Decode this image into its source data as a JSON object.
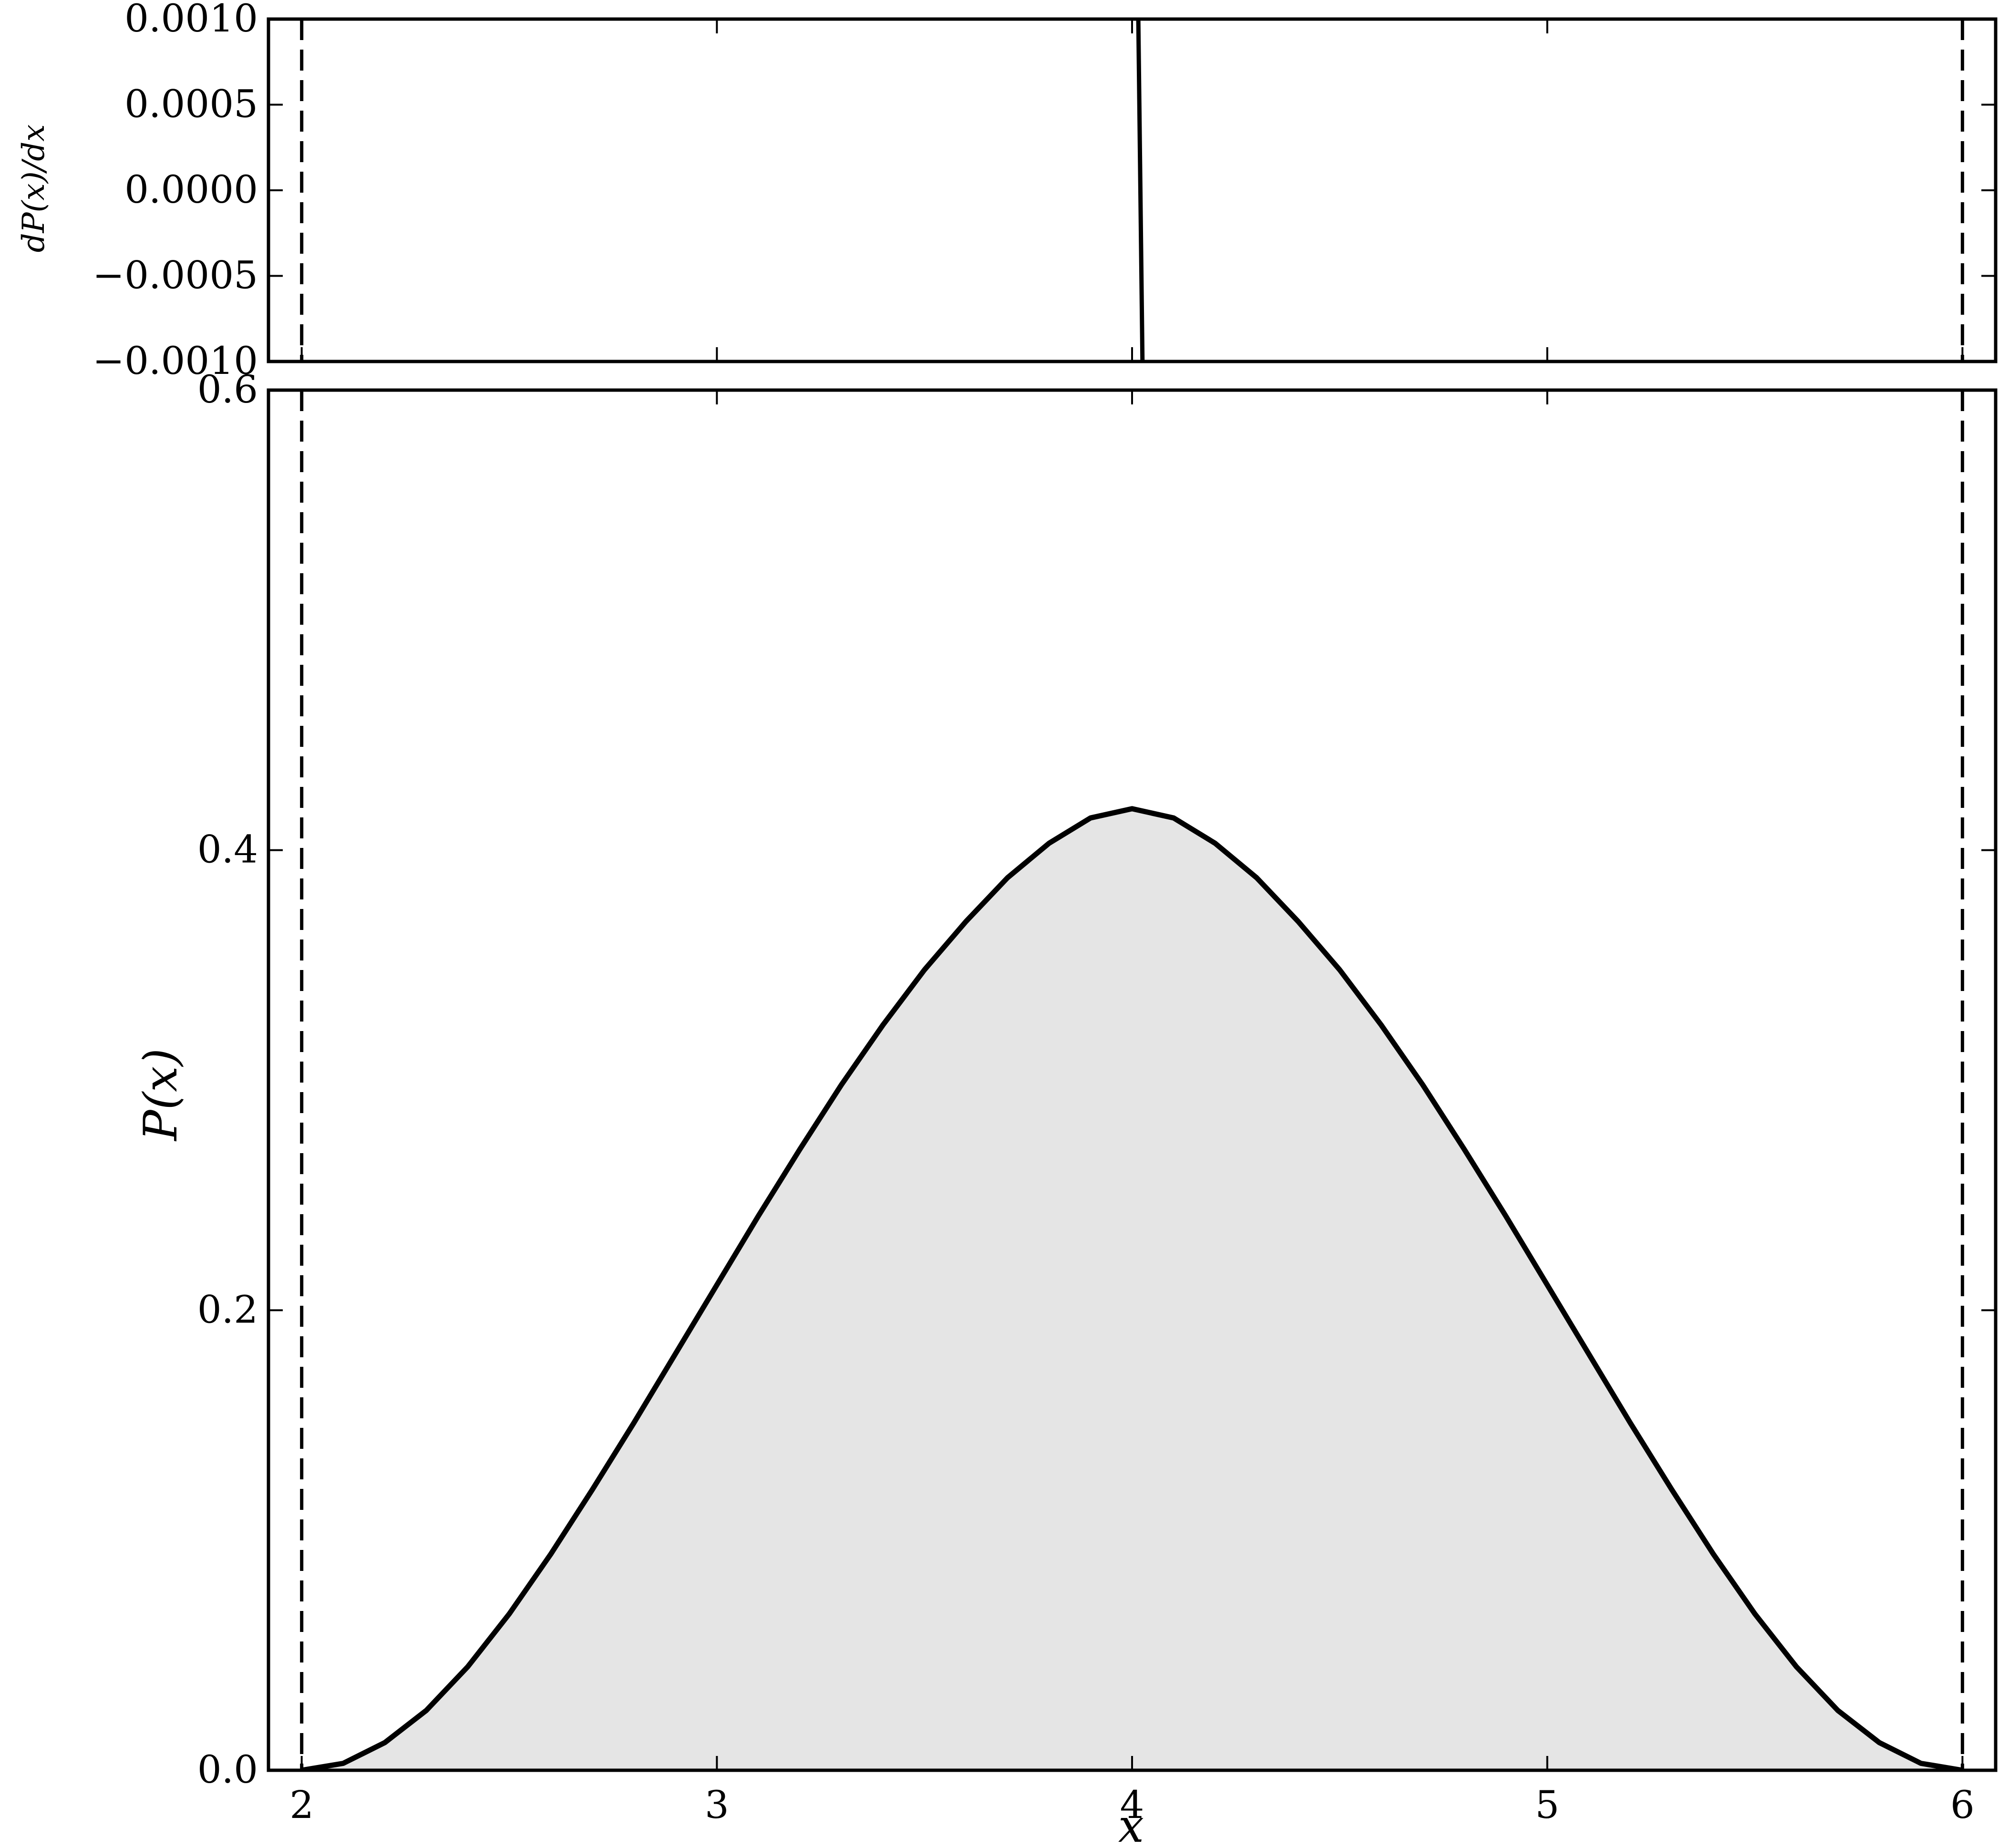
{
  "chart_data": [
    {
      "panel": "top",
      "type": "line",
      "xlabel": "",
      "ylabel": "dP(x)/dx",
      "xlim": [
        1.92,
        6.08
      ],
      "ylim": [
        -0.001,
        0.001
      ],
      "x_ticks": [
        2,
        3,
        4,
        5,
        6
      ],
      "y_ticks": [
        -0.001,
        -0.0005,
        0.0,
        0.0005,
        0.001
      ],
      "y_tick_labels": [
        "−0.0010",
        "−0.0005",
        "0.0000",
        "0.0005",
        "0.0010"
      ],
      "vlines_dashed": [
        2,
        6
      ],
      "series": [
        {
          "x": [
            4.015,
            4.025
          ],
          "y": [
            0.001,
            -0.001
          ]
        }
      ]
    },
    {
      "panel": "bottom",
      "type": "area",
      "xlabel": "x",
      "ylabel": "P(x)",
      "xlim": [
        1.92,
        6.08
      ],
      "ylim": [
        0.0,
        0.6
      ],
      "x_ticks": [
        2,
        3,
        4,
        5,
        6
      ],
      "x_tick_labels": [
        "2",
        "3",
        "4",
        "5",
        "6"
      ],
      "y_ticks": [
        0.0,
        0.2,
        0.4,
        0.6
      ],
      "y_tick_labels": [
        "0.0",
        "0.2",
        "0.4",
        "0.6"
      ],
      "vlines_dashed": [
        2,
        6
      ],
      "fill_color": "#e5e5e5",
      "line_color": "#000000",
      "series": [
        {
          "x": [
            2.0,
            2.1,
            2.2,
            2.3,
            2.4,
            2.5,
            2.6,
            2.7,
            2.8,
            2.9,
            3.0,
            3.1,
            3.2,
            3.3,
            3.4,
            3.5,
            3.6,
            3.7,
            3.8,
            3.9,
            4.0,
            4.1,
            4.2,
            4.3,
            4.4,
            4.5,
            4.6,
            4.7,
            4.8,
            4.9,
            5.0,
            5.1,
            5.2,
            5.3,
            5.4,
            5.5,
            5.6,
            5.7,
            5.8,
            5.9,
            6.0
          ],
          "y": [
            0.0,
            0.003,
            0.012,
            0.026,
            0.045,
            0.068,
            0.094,
            0.122,
            0.151,
            0.181,
            0.211,
            0.241,
            0.27,
            0.298,
            0.324,
            0.348,
            0.369,
            0.388,
            0.403,
            0.414,
            0.418,
            0.414,
            0.403,
            0.388,
            0.369,
            0.348,
            0.324,
            0.298,
            0.27,
            0.241,
            0.211,
            0.181,
            0.151,
            0.122,
            0.094,
            0.068,
            0.045,
            0.026,
            0.012,
            0.003,
            0.0
          ]
        }
      ]
    }
  ]
}
